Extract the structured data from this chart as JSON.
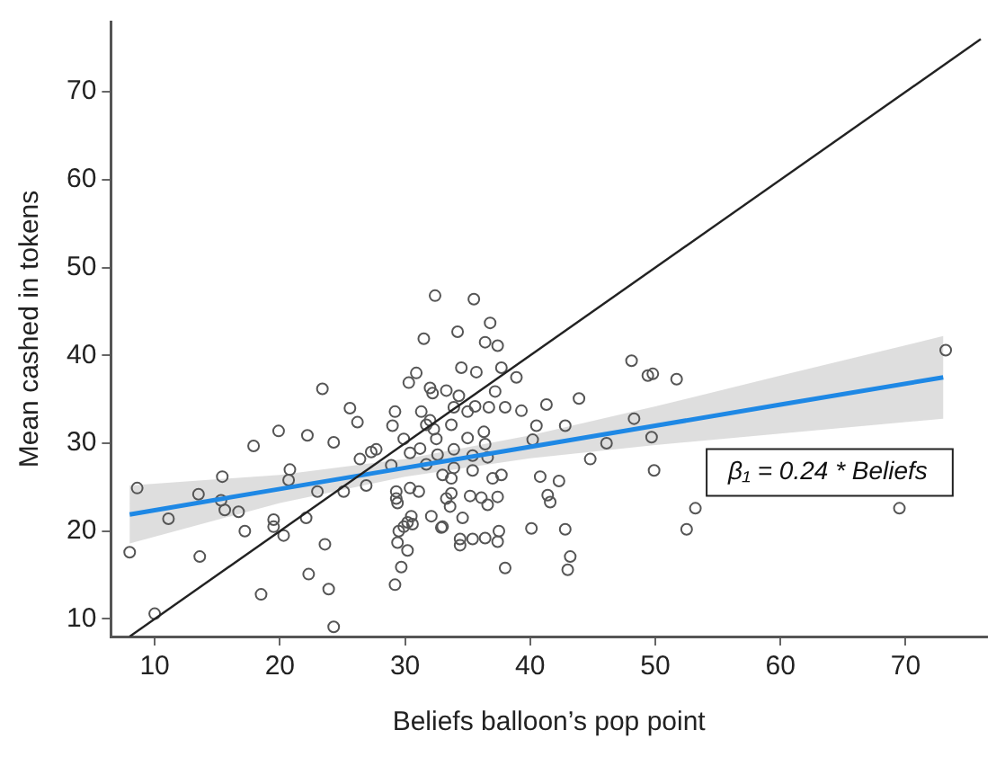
{
  "chart_data": {
    "type": "scatter",
    "xlabel": "Beliefs balloon’s pop point",
    "ylabel": "Mean cashed in tokens",
    "xlim": [
      6.5,
      76.5
    ],
    "ylim": [
      8,
      78
    ],
    "xticks": [
      10,
      20,
      30,
      40,
      50,
      60,
      70
    ],
    "yticks": [
      10,
      20,
      30,
      40,
      50,
      60,
      70
    ],
    "grid": false,
    "legend": false,
    "annotations": [
      "β₁ = 0.24 * Beliefs"
    ],
    "series": [
      {
        "color": "#555555",
        "marker": "circle",
        "x": [
          8.6,
          11.1,
          13.5,
          15.4,
          15.3,
          15.6,
          16.7,
          17.9,
          19.9,
          20.8,
          20.7,
          22.2,
          23.0,
          23.4,
          24.3,
          25.6,
          26.2,
          26.4,
          25.1,
          26.9,
          27.3,
          27.7,
          29.0,
          29.2,
          28.9,
          29.3,
          29.3,
          29.4,
          29.9,
          30.3,
          30.9,
          31.5,
          32.4,
          32.0,
          32.2,
          31.3,
          32.0,
          31.7,
          30.4,
          31.2,
          31.7,
          32.3,
          32.5,
          32.6,
          33.0,
          33.3,
          33.9,
          33.7,
          33.9,
          33.9,
          34.2,
          34.5,
          34.3,
          35.0,
          35.0,
          35.4,
          35.4,
          35.5,
          35.7,
          35.6,
          36.4,
          36.8,
          37.4,
          37.7,
          37.2,
          38.0,
          36.7,
          36.3,
          36.4,
          36.6,
          37.0,
          37.7,
          38.9,
          39.3,
          33.3,
          33.6,
          33.7,
          33.7,
          35.2,
          36.1,
          36.6,
          37.4,
          31.1,
          30.4,
          32.1,
          33.0,
          34.6,
          30.5,
          30.2,
          29.9,
          37.5,
          22.1,
          19.5,
          17.2,
          41.3,
          43.9,
          48.1,
          49.4,
          49.8,
          51.7,
          48.3,
          42.8,
          40.5,
          40.2,
          46.1,
          49.7,
          44.8,
          49.9,
          40.8,
          42.3,
          41.4,
          41.6,
          53.2,
          52.5,
          42.8,
          40.1,
          69.5,
          73.2,
          8.0,
          10.0,
          13.6,
          19.5,
          20.3,
          18.5,
          23.6,
          22.3,
          23.9,
          24.3,
          29.5,
          29.4,
          30.2,
          29.7,
          29.2,
          30.6,
          32.9,
          34.4,
          34.4,
          35.4,
          36.4,
          37.4,
          38.0,
          43.2,
          43.0
        ],
        "values": [
          24.9,
          21.4,
          24.2,
          26.2,
          23.5,
          22.4,
          22.2,
          29.7,
          31.4,
          27.0,
          25.8,
          30.9,
          24.5,
          36.2,
          30.1,
          34.0,
          32.4,
          28.2,
          24.5,
          25.2,
          29.0,
          29.3,
          32.0,
          33.6,
          27.5,
          24.5,
          23.7,
          23.2,
          30.5,
          36.9,
          38.0,
          41.9,
          46.8,
          36.3,
          35.7,
          33.6,
          32.6,
          32.1,
          28.9,
          29.4,
          27.6,
          31.6,
          30.5,
          28.7,
          26.4,
          36.0,
          34.1,
          32.1,
          29.3,
          27.2,
          42.7,
          38.6,
          35.4,
          33.6,
          30.6,
          28.6,
          26.9,
          46.4,
          38.1,
          34.2,
          41.5,
          43.7,
          41.1,
          38.6,
          35.9,
          34.1,
          34.1,
          31.3,
          29.9,
          28.4,
          26.0,
          26.4,
          37.5,
          33.7,
          23.7,
          22.8,
          24.3,
          26.0,
          24.0,
          23.8,
          23.0,
          23.9,
          24.5,
          24.9,
          21.7,
          20.5,
          21.5,
          21.7,
          21.0,
          20.5,
          20.0,
          21.5,
          21.3,
          20.0,
          34.4,
          35.1,
          39.4,
          37.7,
          37.9,
          37.3,
          32.8,
          32.0,
          32.0,
          30.4,
          30.0,
          30.7,
          28.2,
          26.9,
          26.2,
          25.7,
          24.1,
          23.3,
          22.6,
          20.2,
          20.2,
          20.3,
          22.6,
          40.6,
          17.6,
          10.6,
          17.1,
          20.5,
          19.5,
          12.8,
          18.5,
          15.1,
          13.4,
          9.1,
          20.0,
          18.7,
          17.8,
          15.9,
          13.9,
          20.8,
          20.4,
          19.1,
          18.4,
          19.1,
          19.2,
          18.8,
          15.8,
          17.1,
          15.6
        ]
      },
      {
        "type": "line",
        "color": "#222222",
        "x": [
          8,
          76
        ],
        "values": [
          8,
          76
        ]
      },
      {
        "type": "line",
        "color": "#1e88e5",
        "x": [
          8,
          20,
          30,
          40,
          50,
          60,
          73
        ],
        "values": [
          21.9,
          24.8,
          27.2,
          29.6,
          32.0,
          34.4,
          37.5
        ],
        "lower": [
          18.6,
          23.2,
          26.2,
          28.3,
          29.8,
          31.1,
          32.8
        ],
        "upper": [
          25.2,
          26.4,
          28.2,
          30.9,
          34.2,
          37.7,
          42.2
        ]
      }
    ]
  }
}
